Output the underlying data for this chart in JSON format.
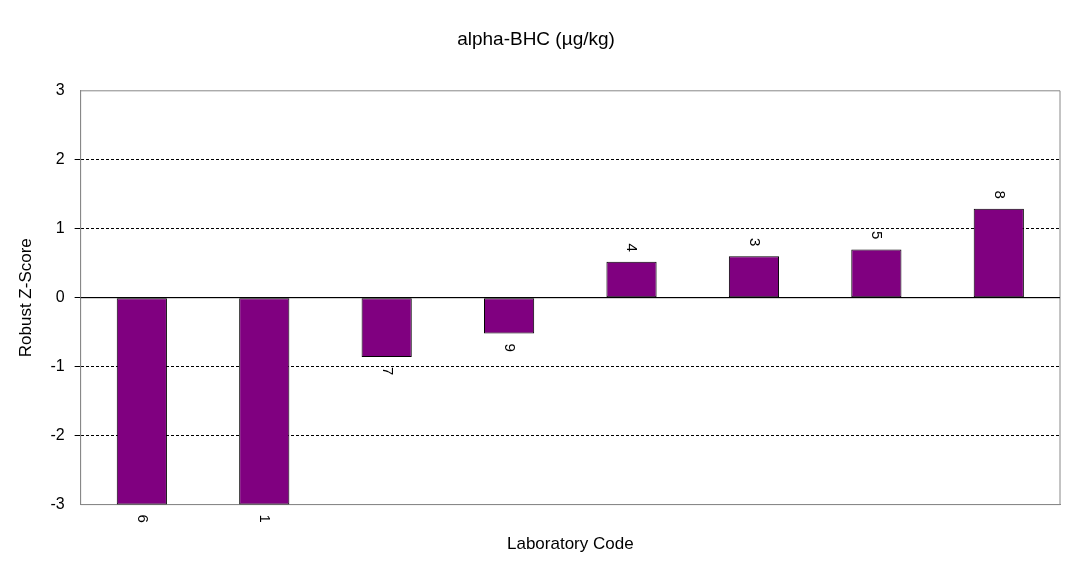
{
  "chart_data": {
    "type": "bar",
    "title": "alpha-BHC (µg/kg)",
    "xlabel": "Laboratory Code",
    "ylabel": "Robust Z-Score",
    "categories": [
      "6",
      "1",
      "7",
      "9",
      "4",
      "3",
      "5",
      "8"
    ],
    "values": [
      -3,
      -3,
      -0.86,
      -0.52,
      0.52,
      0.6,
      0.7,
      1.29
    ],
    "color": "#800080",
    "ylim": [
      -3,
      3
    ],
    "yticks": [
      -3,
      -2,
      -1,
      0,
      1,
      2,
      3
    ],
    "grid": "y",
    "legend": false
  }
}
